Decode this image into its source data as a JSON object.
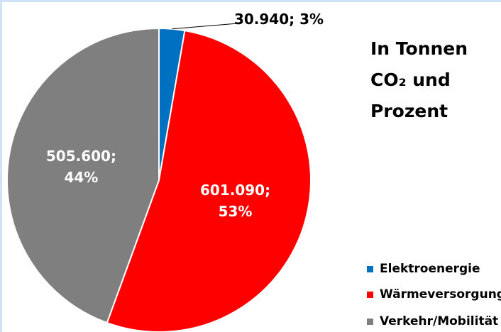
{
  "chart_data": {
    "type": "pie",
    "title": "In Tonnen CO₂ und Prozent",
    "categories": [
      "Elektroenergie",
      "Wärmeversorgung",
      "Verkehr/Mobilität"
    ],
    "values": [
      30940,
      601090,
      505600
    ],
    "value_labels": [
      "30.940; 3%",
      "601.090; 53%",
      "505.600; 44%"
    ],
    "colors": [
      "#0070c0",
      "#ff0000",
      "#7f7f7f"
    ],
    "legend": "right"
  }
}
